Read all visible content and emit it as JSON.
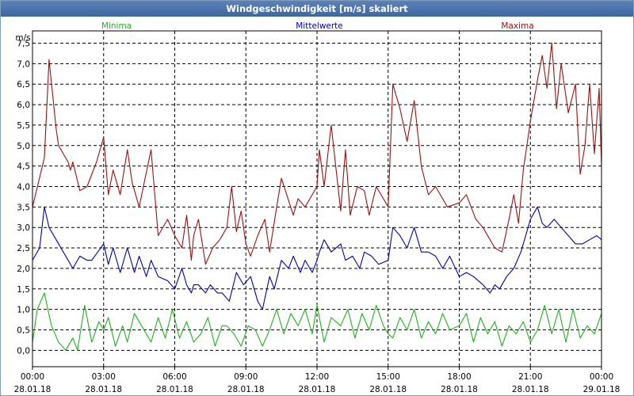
{
  "window": {
    "title": "Windgeschwindigkeit [m/s] skaliert"
  },
  "legend": {
    "min_label": "Minima",
    "mean_label": "Mittelwerte",
    "max_label": "Maxima"
  },
  "colors": {
    "min": "#22b022",
    "mean": "#0000b4",
    "max": "#a01010",
    "grid": "#000000",
    "title_bg": "#4a72a8"
  },
  "chart_data": {
    "type": "line",
    "title": "Windgeschwindigkeit [m/s] skaliert",
    "ylabel": "m/s",
    "ylim": [
      -0.4,
      7.8
    ],
    "yticks": [
      0.0,
      0.5,
      1.0,
      1.5,
      2.0,
      2.5,
      3.0,
      3.5,
      4.0,
      4.5,
      5.0,
      5.5,
      6.0,
      6.5,
      7.0,
      7.5
    ],
    "ytick_labels": [
      "0,0",
      "0,5",
      "1,0",
      "1,5",
      "2,0",
      "2,5",
      "3,0",
      "3,5",
      "4,0",
      "4,5",
      "5,0",
      "5,5",
      "6,0",
      "6,5",
      "7,0",
      "7,5"
    ],
    "xlim_hours": [
      0,
      24
    ],
    "xticks": [
      {
        "hour": 0,
        "time": "00:00",
        "date": "28.01.18"
      },
      {
        "hour": 3,
        "time": "03:00",
        "date": "28.01.18"
      },
      {
        "hour": 6,
        "time": "06:00",
        "date": "28.01.18"
      },
      {
        "hour": 9,
        "time": "09:00",
        "date": "28.01.18"
      },
      {
        "hour": 12,
        "time": "12:00",
        "date": "28.01.18"
      },
      {
        "hour": 15,
        "time": "15:00",
        "date": "28.01.18"
      },
      {
        "hour": 18,
        "time": "18:00",
        "date": "28.01.18"
      },
      {
        "hour": 21,
        "time": "21:00",
        "date": "28.01.18"
      },
      {
        "hour": 24,
        "time": "00:00",
        "date": "29.01.18"
      }
    ],
    "grid": true,
    "series": [
      {
        "name": "Maxima",
        "x": [
          0,
          0.5,
          0.7,
          1.0,
          1.1,
          1.5,
          1.6,
          1.7,
          2.0,
          2.3,
          2.5,
          2.7,
          3.0,
          3.2,
          3.4,
          3.7,
          4.0,
          4.2,
          4.5,
          5.0,
          5.3,
          5.7,
          6.0,
          6.3,
          6.5,
          6.7,
          6.8,
          7.0,
          7.3,
          7.6,
          7.9,
          8.2,
          8.4,
          8.6,
          8.8,
          9.0,
          9.2,
          9.5,
          9.8,
          10.0,
          10.3,
          10.5,
          11.0,
          11.2,
          11.5,
          12.0,
          12.1,
          12.3,
          12.6,
          13.0,
          13.2,
          13.4,
          13.7,
          14.0,
          14.2,
          14.5,
          15.0,
          15.2,
          15.5,
          15.8,
          16.1,
          16.4,
          16.7,
          17.0,
          17.5,
          18.0,
          18.3,
          18.7,
          19.0,
          19.5,
          19.8,
          20.1,
          20.3,
          20.5,
          20.7,
          21.0,
          21.3,
          21.5,
          21.7,
          21.9,
          22.1,
          22.3,
          22.6,
          22.9,
          23.1,
          23.3,
          23.5,
          23.7,
          23.9,
          24.0
        ],
        "values": [
          3.5,
          4.7,
          7.1,
          5.4,
          5.0,
          4.6,
          4.4,
          4.6,
          3.9,
          4.0,
          4.3,
          4.6,
          5.2,
          3.8,
          4.4,
          3.8,
          4.9,
          4.1,
          3.5,
          4.9,
          2.8,
          3.2,
          2.8,
          2.5,
          3.3,
          2.2,
          2.8,
          3.2,
          2.1,
          2.5,
          2.7,
          3.0,
          4.0,
          2.9,
          3.4,
          2.6,
          2.3,
          2.8,
          3.2,
          2.4,
          3.5,
          4.2,
          3.3,
          3.7,
          3.5,
          4.0,
          4.9,
          4.0,
          5.5,
          3.4,
          4.9,
          3.3,
          4.0,
          3.9,
          3.3,
          4.0,
          3.5,
          6.5,
          5.9,
          5.1,
          6.1,
          4.5,
          3.8,
          4.0,
          3.5,
          3.6,
          3.8,
          3.2,
          3.0,
          2.5,
          2.4,
          3.2,
          3.8,
          3.1,
          4.4,
          5.6,
          6.6,
          7.2,
          6.4,
          7.5,
          5.9,
          7.0,
          5.8,
          6.5,
          4.3,
          5.0,
          6.5,
          4.8,
          6.4,
          4.5
        ]
      },
      {
        "name": "Mittelwerte",
        "x": [
          0,
          0.3,
          0.5,
          0.7,
          1.0,
          1.3,
          1.7,
          2.0,
          2.3,
          2.5,
          3.0,
          3.2,
          3.4,
          3.7,
          4.0,
          4.3,
          4.5,
          4.8,
          5.0,
          5.3,
          5.7,
          6.0,
          6.3,
          6.5,
          6.7,
          6.8,
          7.0,
          7.3,
          7.5,
          7.8,
          8.0,
          8.3,
          8.6,
          8.9,
          9.2,
          9.5,
          9.7,
          10.0,
          10.2,
          10.5,
          10.8,
          11.0,
          11.3,
          11.5,
          11.8,
          12.0,
          12.1,
          12.3,
          12.6,
          13.0,
          13.2,
          13.5,
          13.8,
          14.0,
          14.3,
          14.6,
          15.0,
          15.2,
          15.5,
          15.8,
          16.1,
          16.4,
          16.7,
          17.0,
          17.3,
          17.6,
          18.0,
          18.3,
          18.6,
          19.0,
          19.3,
          19.5,
          19.7,
          20.0,
          20.3,
          20.6,
          21.0,
          21.3,
          21.5,
          21.7,
          22.0,
          22.3,
          22.6,
          22.9,
          23.2,
          23.5,
          23.8,
          24.0
        ],
        "values": [
          2.2,
          2.5,
          3.5,
          3.0,
          2.7,
          2.4,
          2.0,
          2.3,
          2.2,
          2.2,
          2.6,
          2.1,
          2.5,
          1.9,
          2.5,
          1.9,
          2.3,
          1.8,
          2.2,
          1.8,
          1.7,
          1.5,
          2.0,
          1.6,
          1.4,
          1.6,
          1.6,
          1.4,
          1.6,
          1.4,
          1.4,
          1.2,
          1.9,
          1.6,
          1.8,
          1.2,
          1.0,
          1.8,
          1.5,
          2.2,
          2.0,
          2.3,
          1.9,
          2.2,
          1.9,
          2.2,
          2.4,
          2.7,
          2.4,
          2.6,
          2.2,
          2.3,
          2.0,
          2.4,
          2.3,
          2.1,
          2.2,
          3.0,
          2.8,
          2.5,
          3.0,
          2.4,
          2.4,
          2.3,
          2.0,
          2.3,
          1.8,
          1.9,
          1.8,
          1.6,
          1.4,
          1.6,
          1.5,
          1.8,
          2.0,
          2.4,
          3.2,
          3.5,
          3.1,
          3.0,
          3.2,
          3.0,
          2.8,
          2.6,
          2.6,
          2.7,
          2.8,
          2.7
        ]
      },
      {
        "name": "Minima",
        "x": [
          0,
          0.2,
          0.5,
          0.8,
          1.1,
          1.4,
          1.7,
          1.9,
          2.2,
          2.5,
          2.8,
          3.0,
          3.2,
          3.5,
          3.8,
          4.0,
          4.3,
          4.6,
          5.0,
          5.3,
          5.6,
          5.9,
          6.2,
          6.5,
          6.8,
          7.1,
          7.4,
          7.7,
          8.0,
          8.2,
          8.5,
          8.8,
          9.1,
          9.4,
          9.7,
          10.0,
          10.3,
          10.6,
          10.9,
          11.2,
          11.5,
          11.8,
          12.0,
          12.3,
          12.6,
          13.0,
          13.3,
          13.6,
          13.9,
          14.2,
          14.5,
          14.8,
          15.0,
          15.2,
          15.5,
          15.8,
          16.1,
          16.4,
          16.7,
          17.0,
          17.3,
          17.6,
          18.0,
          18.3,
          18.6,
          18.9,
          19.2,
          19.5,
          19.8,
          20.1,
          20.4,
          20.7,
          21.0,
          21.3,
          21.6,
          21.9,
          22.2,
          22.5,
          22.8,
          23.1,
          23.4,
          23.7,
          24.0
        ],
        "values": [
          0.2,
          1.0,
          1.4,
          0.6,
          0.2,
          0.0,
          0.3,
          0.0,
          1.1,
          0.2,
          0.7,
          0.5,
          0.8,
          0.1,
          0.6,
          0.2,
          0.9,
          0.6,
          0.2,
          0.8,
          0.3,
          1.0,
          0.3,
          0.7,
          0.2,
          0.4,
          0.8,
          0.1,
          0.6,
          0.6,
          0.4,
          0.1,
          0.6,
          0.5,
          0.1,
          0.5,
          1.0,
          0.4,
          0.9,
          0.6,
          1.0,
          0.4,
          1.1,
          0.2,
          0.8,
          0.6,
          1.0,
          0.3,
          0.9,
          0.5,
          1.1,
          0.6,
          0.4,
          0.3,
          0.8,
          0.5,
          1.0,
          0.3,
          0.7,
          0.4,
          0.9,
          0.5,
          0.6,
          0.9,
          0.2,
          0.8,
          0.4,
          0.7,
          0.1,
          0.6,
          0.4,
          0.7,
          0.2,
          0.5,
          1.1,
          0.4,
          1.0,
          0.2,
          1.0,
          0.3,
          0.6,
          0.4,
          0.9
        ]
      }
    ]
  }
}
